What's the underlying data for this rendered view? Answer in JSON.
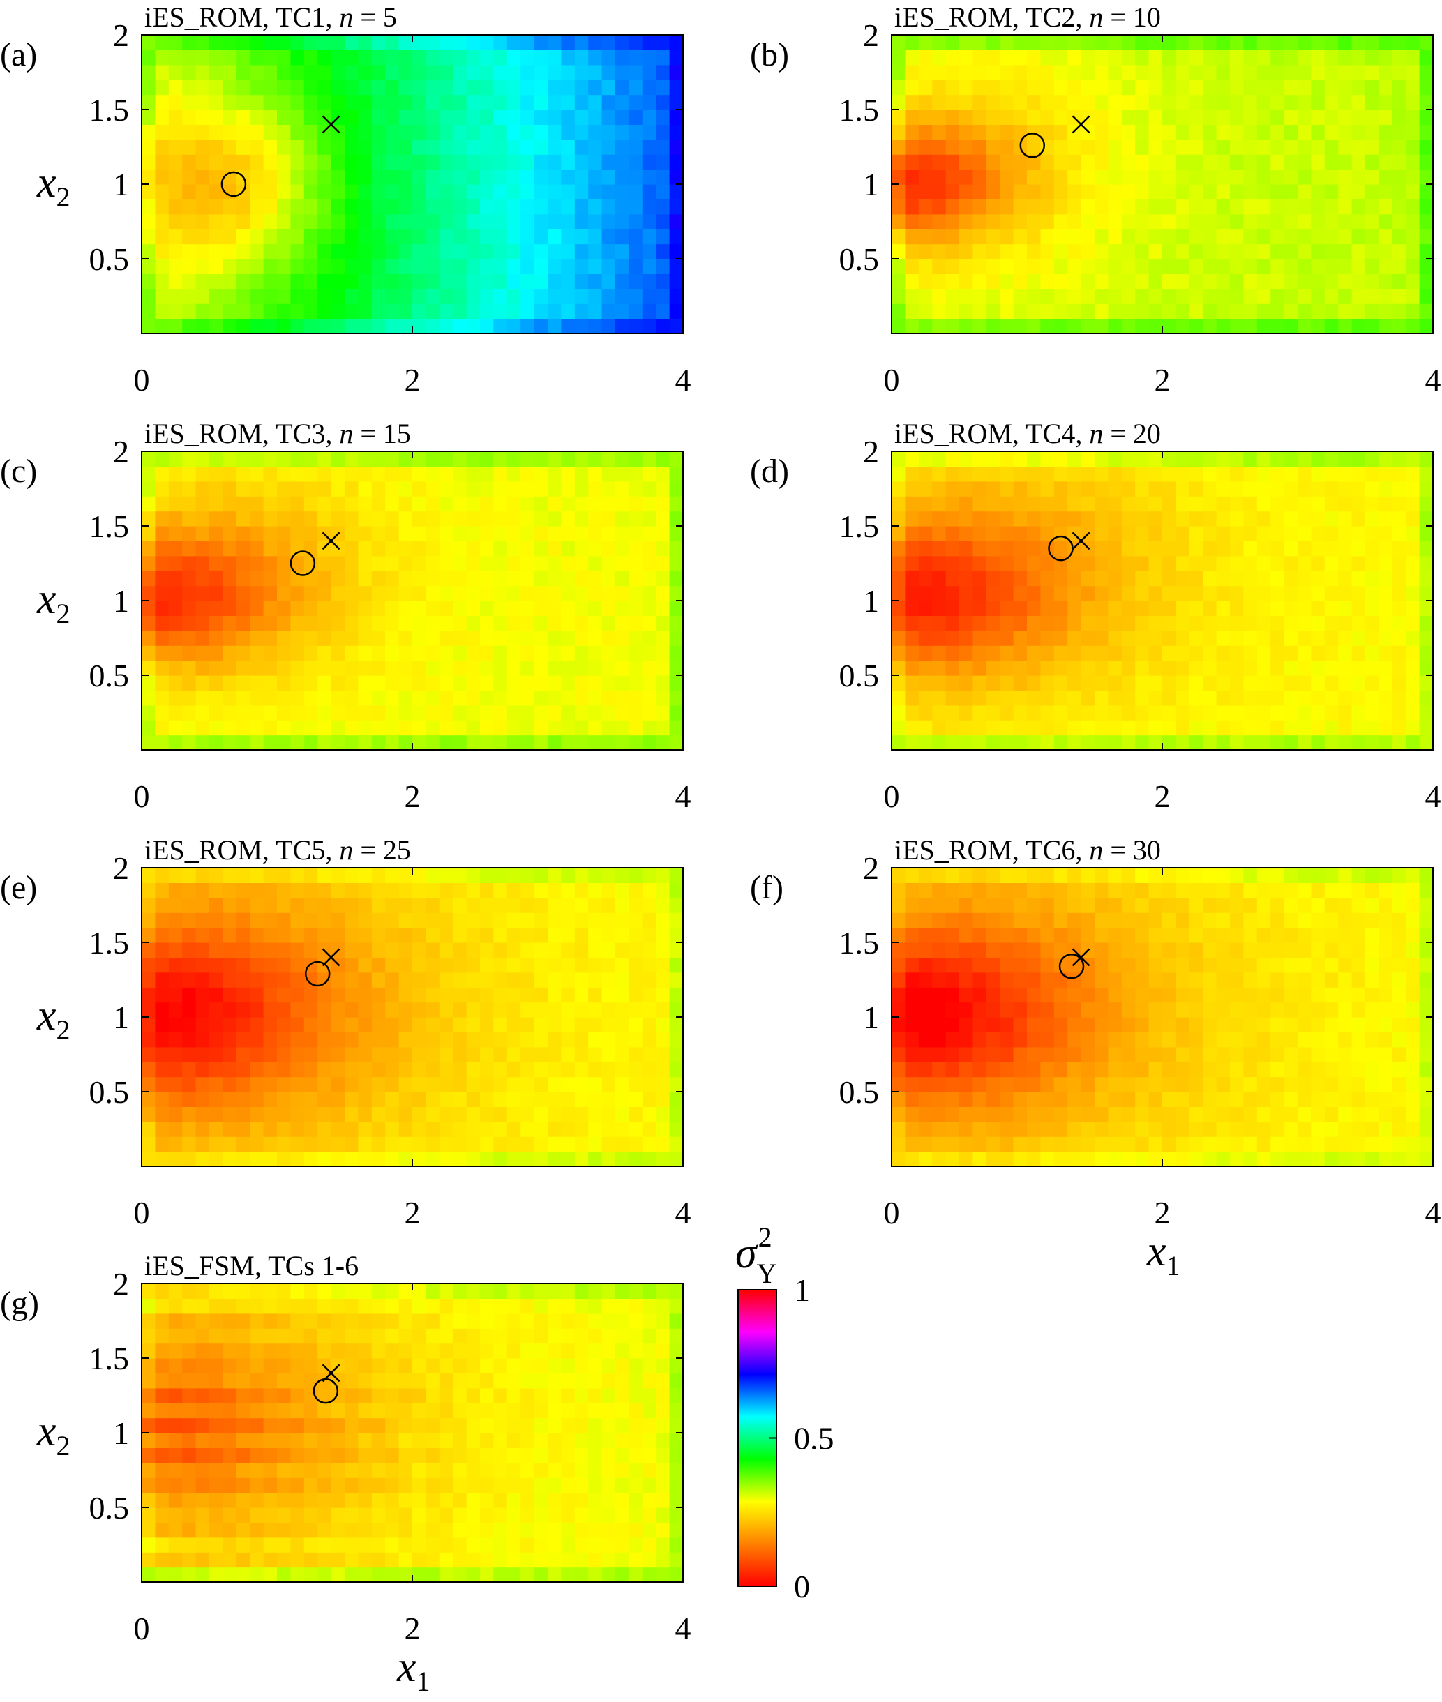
{
  "chart_data": [
    {
      "type": "heatmap",
      "panel_label": "(a)",
      "title": "iES_ROM, TC1, n = 5",
      "title_parts": [
        "iES_ROM, TC1, ",
        "n",
        " = 5"
      ],
      "xlim": [
        0,
        4
      ],
      "ylim": [
        0,
        2
      ],
      "xticks": [
        "0",
        "2",
        "4"
      ],
      "yticks": [
        "0.5",
        "1",
        "1.5",
        "2"
      ],
      "xlabel": "",
      "ylabel": "x2",
      "field": {
        "nx": 40,
        "ny": 20,
        "edge_boost": 0.14,
        "edge_decay": 0.045,
        "components": [
          {
            "type": "const",
            "value": 0.32
          },
          {
            "type": "linear_x",
            "from": 0.0,
            "to": 0.35
          },
          {
            "type": "gauss",
            "cx": 0.6,
            "cy": 1.0,
            "sx": 0.55,
            "sy": 0.42,
            "amp": -0.16
          }
        ]
      },
      "markers": {
        "cross": {
          "x": 1.4,
          "y": 1.4
        },
        "circle": {
          "x": 0.68,
          "y": 1.0
        }
      }
    },
    {
      "type": "heatmap",
      "panel_label": "(b)",
      "title": "iES_ROM, TC2, n = 10",
      "title_parts": [
        "iES_ROM, TC2, ",
        "n",
        " = 10"
      ],
      "xlim": [
        0,
        4
      ],
      "ylim": [
        0,
        2
      ],
      "xticks": [
        "0",
        "2",
        "4"
      ],
      "yticks": [
        "0.5",
        "1",
        "1.5",
        "2"
      ],
      "xlabel": "",
      "ylabel": "",
      "field": {
        "nx": 40,
        "ny": 20,
        "edge_boost": 0.2,
        "edge_decay": 0.04,
        "components": [
          {
            "type": "const",
            "value": 0.3
          },
          {
            "type": "linear_x",
            "from": 0.0,
            "to": 0.02
          },
          {
            "type": "gauss",
            "cx": 0.0,
            "cy": 1.0,
            "sx": 0.55,
            "sy": 0.28,
            "amp": -0.22
          },
          {
            "type": "gauss",
            "cx": 0.7,
            "cy": 1.15,
            "sx": 0.6,
            "sy": 0.45,
            "amp": -0.07
          }
        ]
      },
      "markers": {
        "cross": {
          "x": 1.4,
          "y": 1.4
        },
        "circle": {
          "x": 1.04,
          "y": 1.26
        }
      }
    },
    {
      "type": "heatmap",
      "panel_label": "(c)",
      "title": "iES_ROM, TC3, n = 15",
      "title_parts": [
        "iES_ROM, TC3, ",
        "n",
        " = 15"
      ],
      "xlim": [
        0,
        4
      ],
      "ylim": [
        0,
        2
      ],
      "xticks": [
        "0",
        "2",
        "4"
      ],
      "yticks": [
        "0.5",
        "1",
        "1.5",
        "2"
      ],
      "xlabel": "",
      "ylabel": "x2",
      "field": {
        "nx": 40,
        "ny": 20,
        "edge_boost": 0.18,
        "edge_decay": 0.04,
        "components": [
          {
            "type": "const",
            "value": 0.29
          },
          {
            "type": "gauss",
            "cx": 0.0,
            "cy": 1.0,
            "sx": 0.6,
            "sy": 0.3,
            "amp": -0.19
          },
          {
            "type": "gauss",
            "cx": 0.7,
            "cy": 1.2,
            "sx": 0.75,
            "sy": 0.5,
            "amp": -0.09
          }
        ]
      },
      "markers": {
        "cross": {
          "x": 1.4,
          "y": 1.4
        },
        "circle": {
          "x": 1.19,
          "y": 1.25
        }
      }
    },
    {
      "type": "heatmap",
      "panel_label": "(d)",
      "title": "iES_ROM, TC4, n = 20",
      "title_parts": [
        "iES_ROM, TC4, ",
        "n",
        " = 20"
      ],
      "xlim": [
        0,
        4
      ],
      "ylim": [
        0,
        2
      ],
      "xticks": [
        "0",
        "2",
        "4"
      ],
      "yticks": [
        "0.5",
        "1",
        "1.5",
        "2"
      ],
      "xlabel": "",
      "ylabel": "",
      "field": {
        "nx": 40,
        "ny": 20,
        "edge_boost": 0.17,
        "edge_decay": 0.04,
        "components": [
          {
            "type": "const",
            "value": 0.28
          },
          {
            "type": "gauss",
            "cx": 0.0,
            "cy": 1.0,
            "sx": 0.7,
            "sy": 0.35,
            "amp": -0.18
          },
          {
            "type": "gauss",
            "cx": 0.8,
            "cy": 1.2,
            "sx": 0.9,
            "sy": 0.55,
            "amp": -0.1
          }
        ]
      },
      "markers": {
        "cross": {
          "x": 1.4,
          "y": 1.4
        },
        "circle": {
          "x": 1.25,
          "y": 1.35
        }
      }
    },
    {
      "type": "heatmap",
      "panel_label": "(e)",
      "title": "iES_ROM, TC5, n = 25",
      "title_parts": [
        "iES_ROM, TC5, ",
        "n",
        " = 25"
      ],
      "xlim": [
        0,
        4
      ],
      "ylim": [
        0,
        2
      ],
      "xticks": [
        "0",
        "2",
        "4"
      ],
      "yticks": [
        "0.5",
        "1",
        "1.5",
        "2"
      ],
      "xlabel": "",
      "ylabel": "x2",
      "field": {
        "nx": 40,
        "ny": 20,
        "edge_boost": 0.13,
        "edge_decay": 0.04,
        "components": [
          {
            "type": "const",
            "value": 0.26
          },
          {
            "type": "linear_x",
            "from": 0.0,
            "to": 0.02
          },
          {
            "type": "gauss",
            "cx": 0.0,
            "cy": 1.0,
            "sx": 0.8,
            "sy": 0.4,
            "amp": -0.18
          },
          {
            "type": "gauss",
            "cx": 0.7,
            "cy": 1.1,
            "sx": 1.1,
            "sy": 0.7,
            "amp": -0.1
          }
        ]
      },
      "markers": {
        "cross": {
          "x": 1.4,
          "y": 1.4
        },
        "circle": {
          "x": 1.3,
          "y": 1.29
        }
      }
    },
    {
      "type": "heatmap",
      "panel_label": "(f)",
      "title": "iES_ROM, TC6, n = 30",
      "title_parts": [
        "iES_ROM, TC6, ",
        "n",
        " = 30"
      ],
      "xlim": [
        0,
        4
      ],
      "ylim": [
        0,
        2
      ],
      "xticks": [
        "0",
        "2",
        "4"
      ],
      "yticks": [
        "0.5",
        "1",
        "1.5",
        "2"
      ],
      "xlabel": "x1",
      "ylabel": "",
      "field": {
        "nx": 40,
        "ny": 20,
        "edge_boost": 0.12,
        "edge_decay": 0.04,
        "components": [
          {
            "type": "const",
            "value": 0.26
          },
          {
            "type": "linear_x",
            "from": 0.0,
            "to": 0.02
          },
          {
            "type": "gauss",
            "cx": 0.0,
            "cy": 1.0,
            "sx": 0.8,
            "sy": 0.4,
            "amp": -0.19
          },
          {
            "type": "gauss",
            "cx": 0.7,
            "cy": 1.1,
            "sx": 1.1,
            "sy": 0.7,
            "amp": -0.1
          }
        ]
      },
      "markers": {
        "cross": {
          "x": 1.4,
          "y": 1.4
        },
        "circle": {
          "x": 1.33,
          "y": 1.34
        }
      }
    },
    {
      "type": "heatmap",
      "panel_label": "(g)",
      "title": "iES_FSM, TCs 1-6",
      "title_parts": [
        "iES_FSM, TCs 1-6",
        "",
        ""
      ],
      "xlim": [
        0,
        4
      ],
      "ylim": [
        0,
        2
      ],
      "xticks": [
        "0",
        "2",
        "4"
      ],
      "yticks": [
        "0.5",
        "1",
        "1.5",
        "2"
      ],
      "xlabel": "x1",
      "ylabel": "x2",
      "field": {
        "nx": 40,
        "ny": 20,
        "edge_boost": 0.14,
        "edge_decay": 0.04,
        "stripes": 0.035,
        "components": [
          {
            "type": "const",
            "value": 0.27
          },
          {
            "type": "linear_x",
            "from": 0.0,
            "to": 0.02
          },
          {
            "type": "gauss",
            "cx": 0.3,
            "cy": 1.05,
            "sx": 1.1,
            "sy": 0.55,
            "amp": -0.13
          },
          {
            "type": "gauss",
            "cx": 0.0,
            "cy": 1.0,
            "sx": 0.5,
            "sy": 0.3,
            "amp": -0.04
          }
        ]
      },
      "markers": {
        "cross": {
          "x": 1.4,
          "y": 1.4
        },
        "circle": {
          "x": 1.36,
          "y": 1.28
        }
      }
    }
  ],
  "colorbar": {
    "label": "σY2",
    "label_base": "σ",
    "label_sub": "Y",
    "label_sup": "2",
    "range": [
      0,
      1
    ],
    "ticks": [
      "0",
      "0.5",
      "1"
    ],
    "colors": [
      "#ff0000",
      "#ff8000",
      "#ffff00",
      "#00ff00",
      "#00ffff",
      "#0000ff",
      "#ff00ff",
      "#ff0000"
    ]
  }
}
